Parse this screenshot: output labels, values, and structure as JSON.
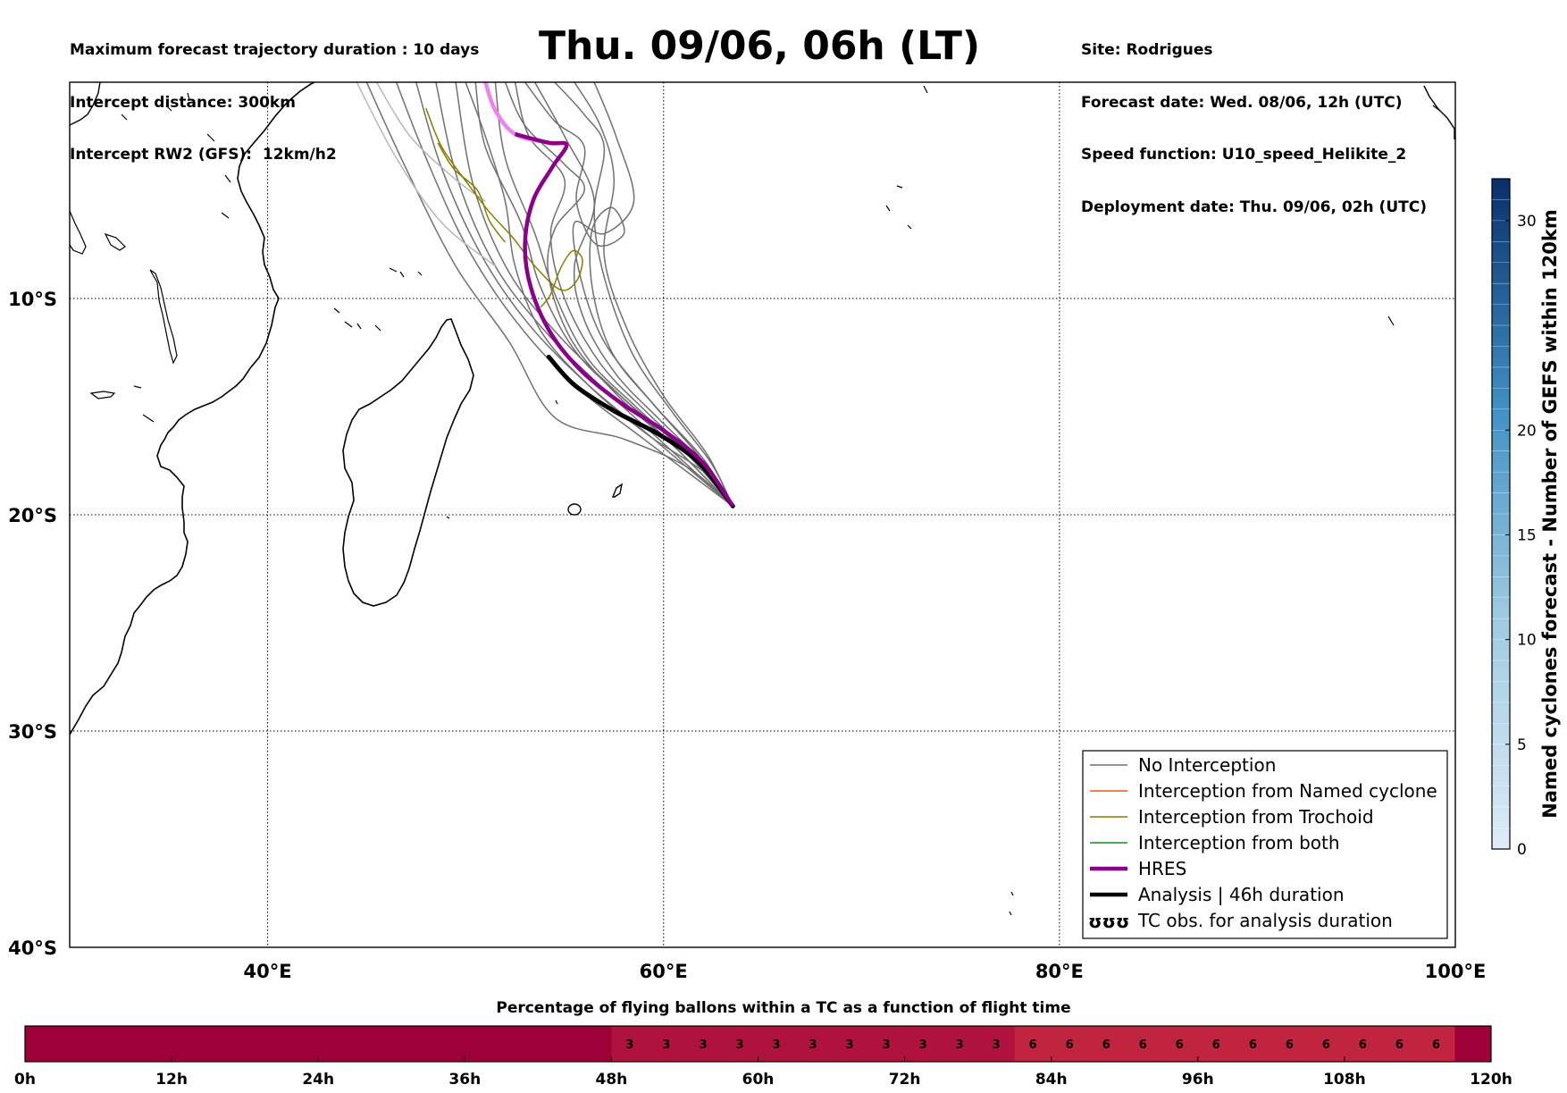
{
  "header": {
    "left": [
      "Maximum forecast trajectory duration : 10 days",
      "Intercept distance: 300km",
      "Intercept RW2 (GFS):  12km/h2"
    ],
    "title": "Thu. 09/06, 06h (LT)",
    "right": [
      "Site: Rodrigues",
      "Forecast date: Wed. 08/06, 12h (UTC)",
      "Speed function: U10_speed_Helikite_2",
      "Deployment date: Thu. 09/06, 02h (UTC)"
    ]
  },
  "colors": {
    "no_interception": "#707070",
    "named_cyclone": "#e85a1a",
    "trochoid": "#8a7d00",
    "both": "#1a8a1a",
    "hres": "#8b008b",
    "hres_light": "#ee82ee",
    "analysis": "#000000",
    "timeline_base": "#9e0038",
    "timeline_3": "#b0123e",
    "timeline_6": "#c0243f"
  },
  "chart_data": [
    {
      "type": "map",
      "projection": "lon-lat",
      "xlim": [
        30,
        100
      ],
      "ylim": [
        -40,
        0
      ],
      "grid": true,
      "x_ticks": [
        {
          "value": 40,
          "label": "40°E"
        },
        {
          "value": 60,
          "label": "60°E"
        },
        {
          "value": 80,
          "label": "80°E"
        },
        {
          "value": 100,
          "label": "100°E"
        }
      ],
      "y_ticks": [
        {
          "value": -10,
          "label": "10°S"
        },
        {
          "value": -20,
          "label": "20°S"
        },
        {
          "value": -30,
          "label": "30°S"
        },
        {
          "value": -40,
          "label": "40°S"
        }
      ],
      "legend_position": "lower right",
      "legend": [
        {
          "label": "No Interception",
          "color_key": "no_interception",
          "style": "thin"
        },
        {
          "label": "Interception from Named cyclone",
          "color_key": "named_cyclone",
          "style": "thin"
        },
        {
          "label": "Interception from Trochoid",
          "color_key": "trochoid",
          "style": "thin"
        },
        {
          "label": "Interception from both",
          "color_key": "both",
          "style": "thin"
        },
        {
          "label": "HRES",
          "color_key": "hres",
          "style": "thick"
        },
        {
          "label": "Analysis | 46h duration",
          "color_key": "analysis",
          "style": "thick"
        },
        {
          "label": "TC obs. for analysis duration",
          "color_key": "analysis",
          "style": "symbol",
          "symbol": "ʊʊʊ"
        }
      ],
      "series": [
        {
          "name": "HRES",
          "points": [
            [
              51.0,
              0
            ],
            [
              51.5,
              -1.3
            ],
            [
              52.5,
              -2.4
            ],
            [
              54.2,
              -2.8
            ],
            [
              55.1,
              -2.9
            ],
            [
              54.4,
              -3.9
            ],
            [
              53.4,
              -5.5
            ],
            [
              53.0,
              -7.5
            ],
            [
              53.3,
              -9.5
            ],
            [
              54.3,
              -11.6
            ],
            [
              55.8,
              -13.3
            ],
            [
              57.8,
              -14.8
            ],
            [
              60.0,
              -16.1
            ],
            [
              62.0,
              -17.6
            ],
            [
              63.5,
              -19.6
            ]
          ]
        },
        {
          "name": "Analysis | 46h duration",
          "points": [
            [
              54.2,
              -12.7
            ],
            [
              55.5,
              -14.0
            ],
            [
              57.5,
              -15.2
            ],
            [
              59.8,
              -16.3
            ],
            [
              61.8,
              -17.6
            ],
            [
              63.5,
              -19.6
            ]
          ]
        }
      ],
      "ensemble_tracks": [
        {
          "category": "no_interception",
          "points": [
            [
              46.5,
              0
            ],
            [
              48.0,
              -3.5
            ],
            [
              50.0,
              -7.5
            ],
            [
              52.5,
              -11.0
            ],
            [
              55.5,
              -14.0
            ],
            [
              59.0,
              -16.5
            ],
            [
              63.5,
              -19.6
            ]
          ]
        },
        {
          "category": "no_interception",
          "points": [
            [
              47.5,
              0
            ],
            [
              48.8,
              -4.0
            ],
            [
              50.8,
              -8.0
            ],
            [
              53.2,
              -11.2
            ],
            [
              56.2,
              -14.0
            ],
            [
              59.5,
              -16.5
            ],
            [
              63.5,
              -19.6
            ]
          ]
        },
        {
          "category": "no_interception",
          "points": [
            [
              48.5,
              0
            ],
            [
              49.6,
              -4.5
            ],
            [
              51.5,
              -8.5
            ],
            [
              54.0,
              -11.5
            ],
            [
              57.0,
              -14.2
            ],
            [
              60.0,
              -16.7
            ],
            [
              63.5,
              -19.6
            ]
          ]
        },
        {
          "category": "no_interception",
          "points": [
            [
              49.5,
              0
            ],
            [
              50.4,
              -4.8
            ],
            [
              52.2,
              -8.8
            ],
            [
              54.8,
              -11.8
            ],
            [
              57.6,
              -14.3
            ],
            [
              60.5,
              -16.8
            ],
            [
              63.5,
              -19.6
            ]
          ]
        },
        {
          "category": "no_interception",
          "points": [
            [
              50.5,
              0
            ],
            [
              51.0,
              -3.0
            ],
            [
              52.8,
              -6.5
            ],
            [
              53.8,
              -9.5
            ],
            [
              55.6,
              -12.5
            ],
            [
              58.2,
              -14.8
            ],
            [
              61.0,
              -17.0
            ],
            [
              63.5,
              -19.6
            ]
          ]
        },
        {
          "category": "no_interception",
          "points": [
            [
              51.5,
              0
            ],
            [
              52.0,
              -3.5
            ],
            [
              53.5,
              -7.0
            ],
            [
              54.6,
              -10.0
            ],
            [
              56.2,
              -12.8
            ],
            [
              58.6,
              -15.0
            ],
            [
              61.2,
              -17.2
            ],
            [
              63.5,
              -19.6
            ]
          ]
        },
        {
          "category": "no_interception",
          "points": [
            [
              52.5,
              0
            ],
            [
              53.2,
              -2.5
            ],
            [
              55.0,
              -4.5
            ],
            [
              54.3,
              -7.0
            ],
            [
              55.0,
              -10.0
            ],
            [
              56.8,
              -13.0
            ],
            [
              59.2,
              -15.3
            ],
            [
              61.6,
              -17.4
            ],
            [
              63.5,
              -19.6
            ]
          ]
        },
        {
          "category": "no_interception",
          "points": [
            [
              53.5,
              0
            ],
            [
              55.0,
              -2.5
            ],
            [
              56.5,
              -5.5
            ],
            [
              55.5,
              -8.5
            ],
            [
              56.0,
              -11.0
            ],
            [
              57.6,
              -13.5
            ],
            [
              59.8,
              -15.6
            ],
            [
              62.0,
              -17.6
            ],
            [
              63.5,
              -19.6
            ]
          ]
        },
        {
          "category": "no_interception",
          "points": [
            [
              54.5,
              0
            ],
            [
              56.0,
              -1.5
            ],
            [
              57.0,
              -3.0
            ],
            [
              56.5,
              -6.0
            ],
            [
              57.0,
              -9.0
            ],
            [
              58.4,
              -12.5
            ],
            [
              60.4,
              -15.2
            ],
            [
              62.4,
              -17.6
            ],
            [
              63.5,
              -19.6
            ]
          ]
        },
        {
          "category": "no_interception",
          "points": [
            [
              55.5,
              0
            ],
            [
              56.8,
              -2.0
            ],
            [
              57.5,
              -4.5
            ],
            [
              57.0,
              -8.0
            ],
            [
              58.2,
              -11.5
            ],
            [
              60.0,
              -14.5
            ],
            [
              62.2,
              -17.2
            ],
            [
              63.5,
              -19.6
            ]
          ]
        },
        {
          "category": "no_interception",
          "points": [
            [
              56.5,
              0
            ],
            [
              57.6,
              -2.5
            ],
            [
              58.5,
              -5.5
            ],
            [
              57.0,
              -7.0
            ],
            [
              55.5,
              -6.5
            ],
            [
              55.8,
              -9.0
            ],
            [
              57.0,
              -12.0
            ],
            [
              59.4,
              -14.8
            ],
            [
              61.8,
              -17.3
            ],
            [
              63.5,
              -19.6
            ]
          ]
        },
        {
          "category": "no_interception",
          "points": [
            [
              52.0,
              0
            ],
            [
              53.0,
              -2.0
            ],
            [
              55.0,
              -3.8
            ],
            [
              56.0,
              -5.0
            ],
            [
              54.5,
              -6.8
            ],
            [
              54.2,
              -9.0
            ],
            [
              55.4,
              -12.0
            ],
            [
              57.8,
              -14.6
            ],
            [
              60.6,
              -16.9
            ],
            [
              63.5,
              -19.6
            ]
          ]
        },
        {
          "category": "no_interception",
          "points": [
            [
              50.0,
              0
            ],
            [
              51.0,
              -2.5
            ],
            [
              52.0,
              -5.5
            ],
            [
              52.5,
              -8.5
            ],
            [
              53.8,
              -11.5
            ],
            [
              56.2,
              -14.0
            ],
            [
              59.2,
              -16.3
            ],
            [
              62.0,
              -18.0
            ],
            [
              63.5,
              -19.6
            ]
          ]
        },
        {
          "category": "no_interception",
          "points": [
            [
              45.0,
              0
            ],
            [
              47.0,
              -4.0
            ],
            [
              49.5,
              -8.5
            ],
            [
              52.2,
              -12.0
            ],
            [
              54.5,
              -15.5
            ],
            [
              58.0,
              -16.5
            ],
            [
              61.2,
              -17.8
            ],
            [
              63.5,
              -19.6
            ]
          ]
        },
        {
          "category": "no_interception",
          "points": [
            [
              53.0,
              0
            ],
            [
              54.5,
              -1.8
            ],
            [
              56.0,
              -3.0
            ],
            [
              55.6,
              -5.5
            ],
            [
              56.6,
              -7.5
            ],
            [
              58.0,
              -7.0
            ],
            [
              57.4,
              -5.8
            ],
            [
              56.4,
              -6.8
            ],
            [
              56.4,
              -9.5
            ],
            [
              57.4,
              -12.5
            ],
            [
              59.6,
              -15.0
            ],
            [
              62.0,
              -17.4
            ],
            [
              63.5,
              -19.6
            ]
          ]
        },
        {
          "category": "no_interception_light",
          "points": [
            [
              44.5,
              0
            ],
            [
              46.5,
              -3.5
            ],
            [
              48.8,
              -6.5
            ],
            [
              51.5,
              -8.5
            ]
          ]
        },
        {
          "category": "no_interception_light",
          "points": [
            [
              45.5,
              0
            ],
            [
              47.2,
              -2.5
            ],
            [
              49.5,
              -4.5
            ],
            [
              51.0,
              -5.5
            ]
          ]
        },
        {
          "category": "trochoid",
          "points": [
            [
              48.0,
              -1.2
            ],
            [
              48.8,
              -3.0
            ],
            [
              50.2,
              -4.8
            ],
            [
              51.2,
              -6.0
            ],
            [
              52.4,
              -7.2
            ],
            [
              53.5,
              -8.5
            ],
            [
              54.8,
              -9.6
            ],
            [
              55.6,
              -9.2
            ],
            [
              55.9,
              -8.2
            ],
            [
              55.4,
              -7.8
            ],
            [
              54.8,
              -8.6
            ],
            [
              54.3,
              -9.8
            ],
            [
              53.8,
              -10.4
            ]
          ]
        },
        {
          "category": "trochoid",
          "points": [
            [
              48.6,
              -2.8
            ],
            [
              49.4,
              -4.0
            ],
            [
              50.6,
              -5.0
            ],
            [
              51.2,
              -6.4
            ],
            [
              52.0,
              -7.4
            ]
          ]
        }
      ]
    },
    {
      "type": "colorbar",
      "label": "Named cyclones forecast - Number of GEFS within 120km",
      "range": [
        0,
        32
      ],
      "ticks": [
        0,
        5,
        10,
        15,
        20,
        30
      ],
      "color_low": "#deebf7",
      "color_high": "#08306b"
    },
    {
      "type": "bar",
      "title": "Percentage of flying ballons within a TC as a function of flight time",
      "x_range": [
        0,
        120
      ],
      "x_ticks": [
        {
          "value": 0,
          "label": "0h"
        },
        {
          "value": 12,
          "label": "12h"
        },
        {
          "value": 24,
          "label": "24h"
        },
        {
          "value": 36,
          "label": "36h"
        },
        {
          "value": 48,
          "label": "48h"
        },
        {
          "value": 60,
          "label": "60h"
        },
        {
          "value": 72,
          "label": "72h"
        },
        {
          "value": 84,
          "label": "84h"
        },
        {
          "value": 96,
          "label": "96h"
        },
        {
          "value": 108,
          "label": "108h"
        },
        {
          "value": 120,
          "label": "120h"
        }
      ],
      "bins_hours": [
        51,
        54,
        57,
        60,
        63,
        66,
        69,
        72,
        75,
        78,
        81,
        84,
        87,
        90,
        93,
        96,
        99,
        102,
        105,
        108,
        111,
        114,
        117,
        120
      ],
      "values": [
        3,
        3,
        3,
        3,
        3,
        3,
        3,
        3,
        3,
        3,
        3,
        6,
        6,
        6,
        6,
        6,
        6,
        6,
        6,
        6,
        6,
        6,
        6,
        0
      ]
    }
  ]
}
